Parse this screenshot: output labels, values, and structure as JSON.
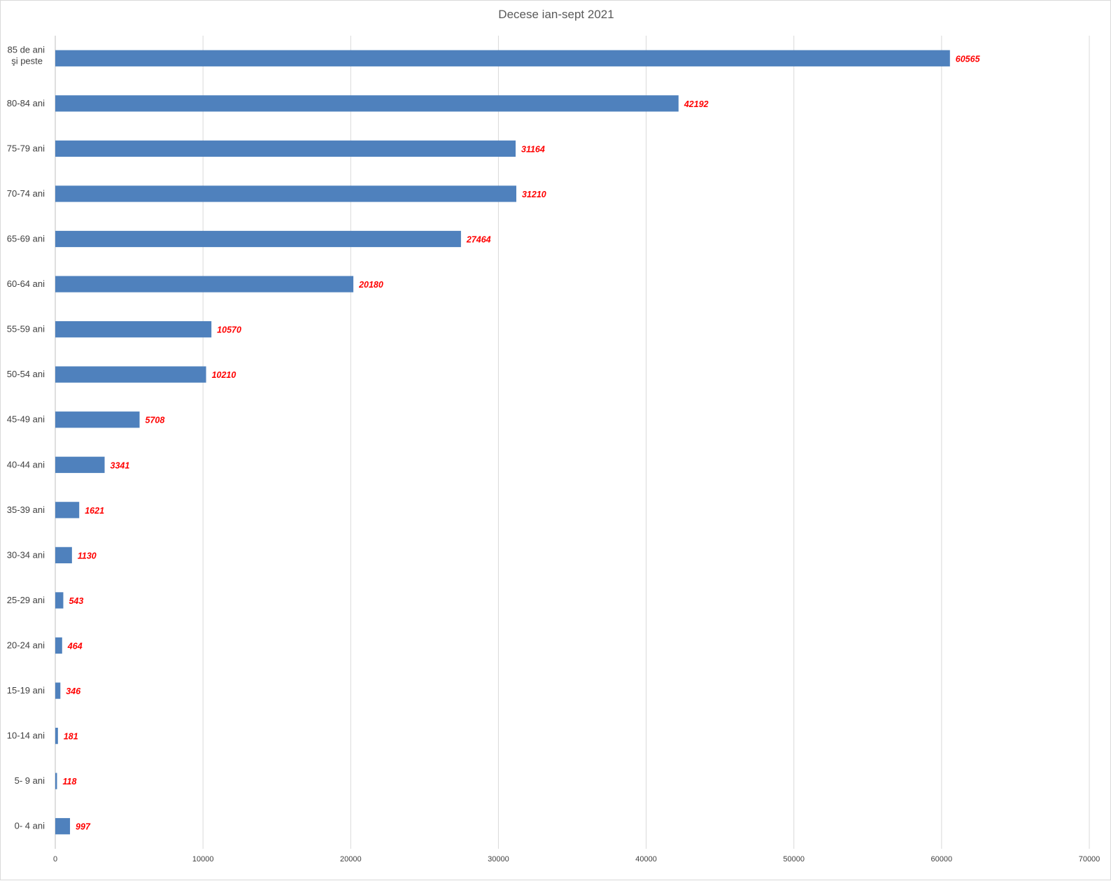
{
  "chart_data": {
    "type": "bar",
    "orientation": "horizontal",
    "title": "Decese ian-sept 2021",
    "xlabel": "",
    "ylabel": "",
    "xlim": [
      0,
      70000
    ],
    "x_ticks": [
      "0",
      "10000",
      "20000",
      "30000",
      "40000",
      "50000",
      "60000",
      "70000"
    ],
    "grid": "vertical",
    "legend": "none",
    "bar_color": "#4f81bd",
    "label_color": "#ff0000",
    "categories": [
      "85 de ani şi peste",
      "80-84 ani",
      "75-79 ani",
      "70-74 ani",
      "65-69 ani",
      "60-64 ani",
      "55-59 ani",
      "50-54 ani",
      "45-49 ani",
      "40-44 ani",
      "35-39 ani",
      "30-34 ani",
      "25-29 ani",
      "20-24 ani",
      "15-19 ani",
      "10-14 ani",
      "5- 9 ani",
      "0- 4 ani"
    ],
    "values": [
      60565,
      42192,
      31164,
      31210,
      27464,
      20180,
      10570,
      10210,
      5708,
      3341,
      1621,
      1130,
      543,
      464,
      346,
      181,
      118,
      997
    ],
    "data_labels": [
      "60565",
      "42192",
      "31164",
      "31210",
      "27464",
      "20180",
      "10570",
      "10210",
      "5708",
      "3341",
      "1621",
      "1130",
      "543",
      "464",
      "346",
      "181",
      "118",
      "997"
    ]
  }
}
